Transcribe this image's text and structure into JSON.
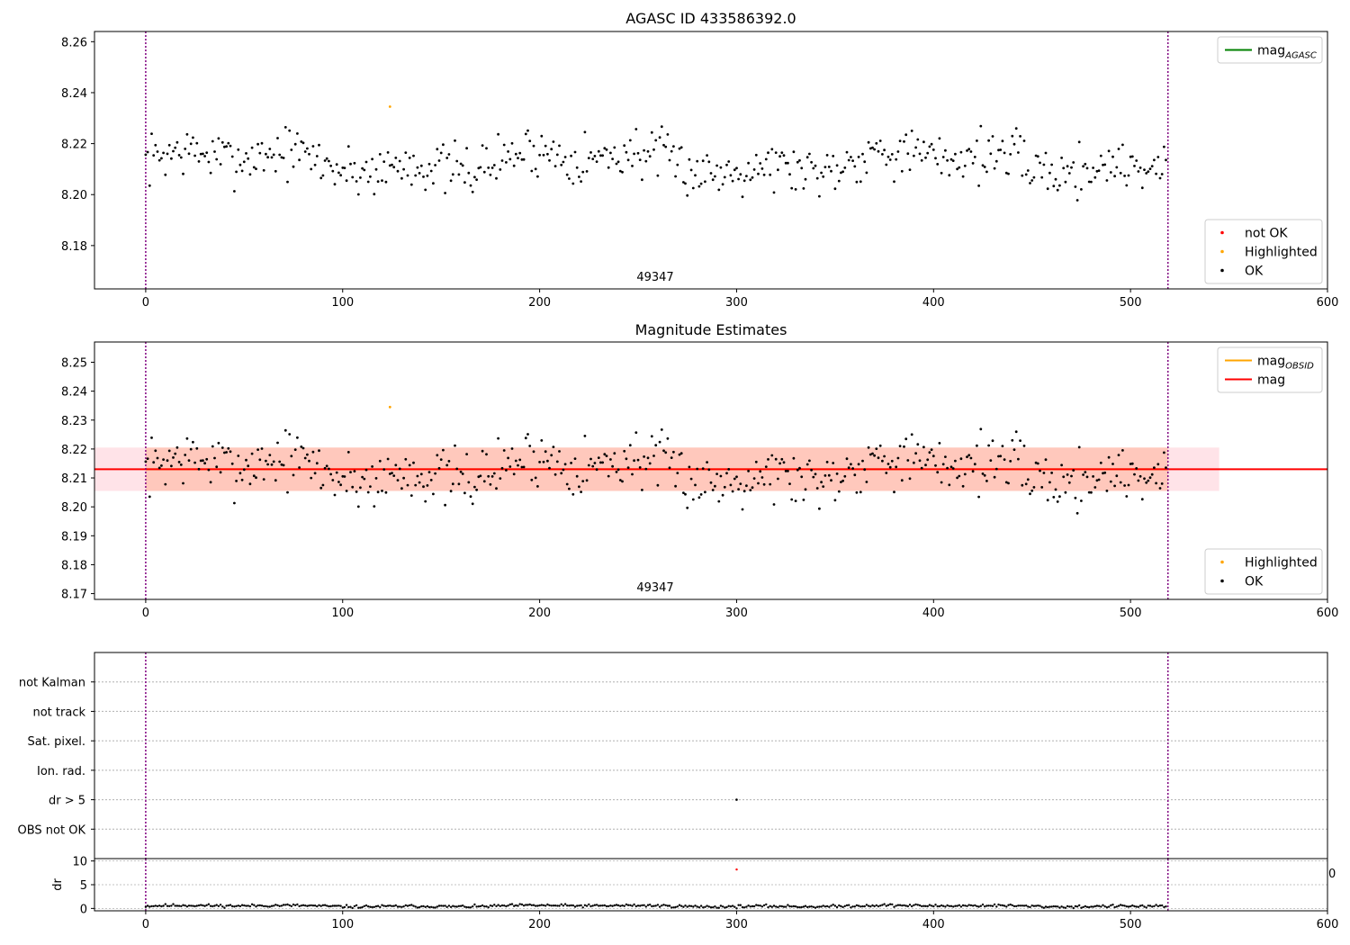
{
  "colors": {
    "ok": "#000000",
    "highlighted": "#ffa500",
    "not_ok": "#ff0000",
    "obsid_line": "#ffa500",
    "mag_line": "#ff0000",
    "agasc_line": "#008000",
    "boundary_line": "#800080",
    "band_obsid": "#ffa07a",
    "band_mag": "#ffc0cb",
    "grid": "#b0b0b0"
  },
  "chart_data": [
    {
      "type": "scatter",
      "title": "AGASC ID 433586392.0",
      "xlim": [
        -26,
        600
      ],
      "ylim": [
        8.163,
        8.264
      ],
      "xticks": [
        0,
        100,
        200,
        300,
        400,
        500,
        600
      ],
      "xtick_labels": [
        "0",
        "100",
        "200",
        "300",
        "400",
        "500",
        "600"
      ],
      "yticks": [
        8.18,
        8.2,
        8.22,
        8.24,
        8.26
      ],
      "ytick_labels": [
        "8.18",
        "8.20",
        "8.22",
        "8.24",
        "8.26"
      ],
      "obsid_boundaries": [
        0,
        519
      ],
      "obsid_label": "49347",
      "obsid_label_x": 259,
      "series": [
        {
          "name": "OK",
          "marker": "ok",
          "n": 519,
          "x_start": 0,
          "x_step": 1,
          "mean": 8.213,
          "amp": 0.009,
          "noise": 0.005,
          "seed": 7
        },
        {
          "name": "Highlighted",
          "marker": "highlighted",
          "points": [
            [
              124,
              8.2345
            ]
          ]
        },
        {
          "name": "not OK",
          "marker": "not_ok",
          "points": []
        }
      ],
      "legends": [
        {
          "position": "top-right",
          "entries": [
            {
              "kind": "line",
              "color": "agasc_line",
              "label": "mag",
              "sub": "AGASC"
            }
          ]
        },
        {
          "position": "bottom-right",
          "entries": [
            {
              "kind": "dot",
              "color": "not_ok",
              "label": "not OK"
            },
            {
              "kind": "dot",
              "color": "highlighted",
              "label": "Highlighted"
            },
            {
              "kind": "dot",
              "color": "ok",
              "label": "OK"
            }
          ]
        }
      ]
    },
    {
      "type": "scatter",
      "title": "Magnitude Estimates",
      "xlim": [
        -26,
        600
      ],
      "ylim": [
        8.168,
        8.257
      ],
      "xticks": [
        0,
        100,
        200,
        300,
        400,
        500,
        600
      ],
      "xtick_labels": [
        "0",
        "100",
        "200",
        "300",
        "400",
        "500",
        "600"
      ],
      "yticks": [
        8.17,
        8.18,
        8.19,
        8.2,
        8.21,
        8.22,
        8.23,
        8.24,
        8.25
      ],
      "ytick_labels": [
        "8.17",
        "8.18",
        "8.19",
        "8.20",
        "8.21",
        "8.22",
        "8.23",
        "8.24",
        "8.25"
      ],
      "obsid_boundaries": [
        0,
        519
      ],
      "obsid_label": "49347",
      "obsid_label_x": 259,
      "mag": 8.213,
      "mag_band": [
        8.2055,
        8.2205
      ],
      "mag_band_x": [
        -26,
        545
      ],
      "obsid_mag": 8.213,
      "obsid_band": [
        8.2055,
        8.2205
      ],
      "obsid_band_x": [
        0,
        519
      ],
      "series": [
        {
          "name": "OK",
          "marker": "ok",
          "n": 519,
          "x_start": 0,
          "x_step": 1,
          "mean": 8.213,
          "amp": 0.009,
          "noise": 0.005,
          "seed": 7
        },
        {
          "name": "Highlighted",
          "marker": "highlighted",
          "points": [
            [
              124,
              8.2345
            ]
          ]
        }
      ],
      "legends": [
        {
          "position": "top-right",
          "entries": [
            {
              "kind": "line",
              "color": "obsid_line",
              "label": "mag",
              "sub": "OBSID"
            },
            {
              "kind": "line",
              "color": "mag_line",
              "label": "mag",
              "sub": ""
            }
          ]
        },
        {
          "position": "bottom-right",
          "entries": [
            {
              "kind": "dot",
              "color": "highlighted",
              "label": "Highlighted"
            },
            {
              "kind": "dot",
              "color": "ok",
              "label": "OK"
            }
          ]
        }
      ]
    },
    {
      "type": "scatter",
      "title": "",
      "xlim": [
        -26,
        600
      ],
      "ylim": [
        0,
        7
      ],
      "categories": [
        "OBS not OK",
        "dr > 5",
        "Ion. rad.",
        "Sat. pixel.",
        "not track",
        "not Kalman"
      ],
      "obsid_boundaries": [
        0,
        519
      ],
      "flag_points": [
        {
          "category": "dr > 5",
          "x": 300
        }
      ]
    },
    {
      "type": "scatter",
      "title": "",
      "ylabel": "dr",
      "xlim": [
        -26,
        600
      ],
      "ylim": [
        -0.5,
        10.5
      ],
      "xticks": [
        0,
        100,
        200,
        300,
        400,
        500,
        600
      ],
      "xtick_labels": [
        "0",
        "100",
        "200",
        "300",
        "400",
        "500",
        "600"
      ],
      "yticks": [
        0,
        5,
        10
      ],
      "ytick_labels": [
        "0",
        "5",
        "10"
      ],
      "obsid_boundaries": [
        0,
        519
      ],
      "right_edge_label": "0",
      "series": [
        {
          "name": "dr",
          "marker": "ok",
          "n": 519,
          "x_start": 0,
          "x_step": 1,
          "mean": 0.5,
          "amp": 0.3,
          "noise": 0.15,
          "seed": 11
        },
        {
          "name": "dr outlier",
          "marker": "not_ok",
          "points": [
            [
              300,
              8.2
            ]
          ]
        }
      ]
    }
  ]
}
